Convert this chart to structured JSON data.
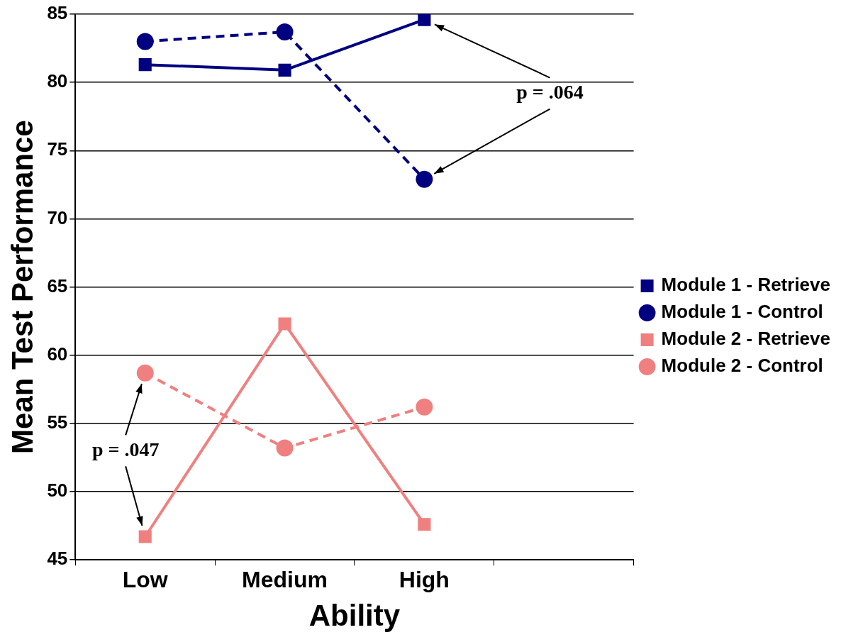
{
  "chart_data": {
    "type": "line",
    "xlabel": "Ability",
    "ylabel": "Mean Test Performance",
    "categories": [
      "Low",
      "Medium",
      "High",
      null
    ],
    "series": [
      {
        "name": "Module 1 - Retrieve",
        "color": "#000080",
        "marker": "square",
        "line_style": "solid",
        "values": [
          81.3,
          80.9,
          84.6,
          null
        ]
      },
      {
        "name": "Module 1 - Control",
        "color": "#000080",
        "marker": "circle",
        "line_style": "dashed",
        "values": [
          83.0,
          83.7,
          72.9,
          null
        ]
      },
      {
        "name": "Module 2 - Retrieve",
        "color": "#f08080",
        "marker": "square",
        "line_style": "solid",
        "values": [
          46.7,
          62.3,
          47.6,
          null
        ]
      },
      {
        "name": "Module 2 - Control",
        "color": "#f08080",
        "marker": "circle",
        "line_style": "dashed",
        "values": [
          58.7,
          53.2,
          56.2,
          null
        ]
      }
    ],
    "ylim": [
      45,
      85
    ],
    "yticks": [
      45,
      50,
      55,
      60,
      65,
      70,
      75,
      80,
      85
    ],
    "grid": "y",
    "legend": "right",
    "annotations": [
      "p = .064",
      "p = .047"
    ]
  }
}
